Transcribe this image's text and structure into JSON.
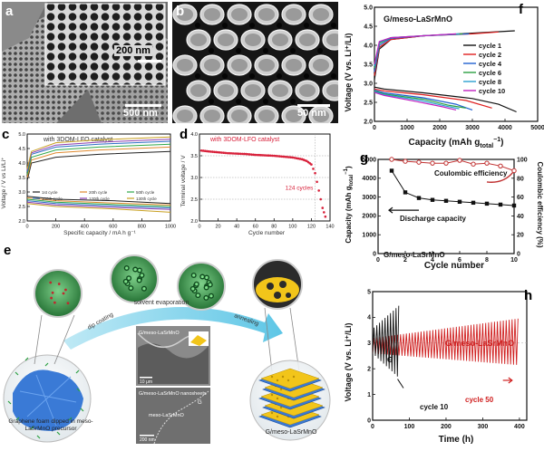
{
  "panels": {
    "a": {
      "label": "a",
      "scale_main": "500 nm",
      "scale_inset": "200 nm"
    },
    "b": {
      "label": "b",
      "scale": "50 nm"
    },
    "c": {
      "label": "c",
      "title": "with 3DOM-LFO catalyst",
      "ylabel": "Voltage / V vs Li/Li⁺",
      "xlabel": "Specific capacity / mA h g⁻¹",
      "yticks": [
        "2.0",
        "2.5",
        "3.0",
        "3.5",
        "4.0",
        "4.5",
        "5.0"
      ],
      "xticks": [
        "0",
        "200",
        "400",
        "600",
        "800",
        "1000"
      ],
      "legend": [
        "1st cycle",
        "20th cycle",
        "50th cycle",
        "100th cycle",
        "120th cycle",
        "130th cycle"
      ]
    },
    "d": {
      "label": "d",
      "title": "with 3DOM-LFO catalyst",
      "ylabel": "Terminal voltage / V",
      "xlabel": "Cycle number",
      "yticks": [
        "2.0",
        "2.5",
        "3.0",
        "3.5",
        "4.0"
      ],
      "xticks": [
        "0",
        "20",
        "40",
        "60",
        "80",
        "100",
        "120",
        "140"
      ],
      "annotation": "124 cycles"
    },
    "e": {
      "label": "e",
      "step1": "dip coating",
      "step2": "solvent evaporation",
      "step3": "annealing",
      "left_caption": "Graphene foam dipped in meso-LaSrMnO precursor",
      "right_caption": "G/meso-LaSrMnO",
      "sem_top_label": "G/meso-LaSrMnO",
      "sem_top_scale": "10 μm",
      "sem_bottom_label": "G/meso-LaSrMnO nanosheets",
      "sem_bottom_g": "G",
      "sem_bottom_m": "meso-LaSrMnO",
      "sem_bottom_scale": "200 nm"
    },
    "f": {
      "label": "f",
      "title": "G/meso-LaSrMnO",
      "ylabel": "Voltage (V vs. Li⁺/Li)",
      "xlabel": "Capacity (mAh g",
      "xlabel_sub": "total",
      "xlabel_sup": "−1",
      "xlabel_end": ")",
      "yticks": [
        "2.0",
        "2.5",
        "3.0",
        "3.5",
        "4.0",
        "4.5",
        "5.0"
      ],
      "xticks": [
        "0",
        "1000",
        "2000",
        "3000",
        "4000",
        "5000"
      ],
      "legend": [
        "cycle 1",
        "cycle 2",
        "cycle 4",
        "cycle 6",
        "cycle 8",
        "cycle 10"
      ]
    },
    "g": {
      "label": "g",
      "ylabel_left": "Capacity (mAh g",
      "ylabel_left_sub": "total",
      "ylabel_left_sup": "−1",
      "ylabel_left_end": ")",
      "ylabel_right": "Coulombic efficiency (%)",
      "xlabel": "Cycle number",
      "yticks_left": [
        "0",
        "1000",
        "2000",
        "3000",
        "4000",
        "5000"
      ],
      "yticks_right": [
        "0",
        "20",
        "40",
        "60",
        "80",
        "100"
      ],
      "xticks": [
        "0",
        "2",
        "4",
        "6",
        "8",
        "10"
      ],
      "annot_ce": "Coulombic efficiency",
      "annot_dc": "Discharge capacity",
      "annot_name": "G/meso-LaSrMnO"
    },
    "h": {
      "label": "h",
      "ylabel": "Voltage (V vs. Li⁺/Li)",
      "xlabel": "Time (h)",
      "yticks": [
        "0",
        "1",
        "2",
        "3",
        "4",
        "5"
      ],
      "xticks": [
        "0",
        "100",
        "200",
        "300",
        "400"
      ],
      "annot_g": "G",
      "annot_gm": "G/meso-LaSrMnO",
      "annot_c10": "cycle 10",
      "annot_c50": "cycle 50"
    }
  },
  "chart_data": [
    {
      "panel": "c",
      "type": "line",
      "title": "with 3DOM-LFO catalyst",
      "xlabel": "Specific capacity / mA h g⁻¹",
      "ylabel": "Voltage / V vs Li/Li⁺",
      "xlim": [
        0,
        1000
      ],
      "ylim": [
        2.0,
        5.0
      ],
      "series": [
        {
          "name": "1st cycle",
          "color": "#222222",
          "charge": [
            [
              0,
              3.4
            ],
            [
              30,
              4.0
            ],
            [
              200,
              4.2
            ],
            [
              500,
              4.3
            ],
            [
              1000,
              4.4
            ]
          ],
          "discharge": [
            [
              0,
              2.85
            ],
            [
              200,
              2.75
            ],
            [
              600,
              2.7
            ],
            [
              1000,
              2.6
            ]
          ]
        },
        {
          "name": "20th cycle",
          "color": "#e0892e",
          "charge": [
            [
              0,
              3.5
            ],
            [
              30,
              4.1
            ],
            [
              200,
              4.35
            ],
            [
              500,
              4.45
            ],
            [
              1000,
              4.55
            ]
          ],
          "discharge": [
            [
              0,
              2.8
            ],
            [
              200,
              2.7
            ],
            [
              600,
              2.62
            ],
            [
              1000,
              2.55
            ]
          ]
        },
        {
          "name": "50th cycle",
          "color": "#2fa84a",
          "charge": [
            [
              0,
              3.6
            ],
            [
              30,
              4.2
            ],
            [
              200,
              4.45
            ],
            [
              500,
              4.55
            ],
            [
              1000,
              4.65
            ]
          ],
          "discharge": [
            [
              0,
              2.75
            ],
            [
              200,
              2.65
            ],
            [
              600,
              2.57
            ],
            [
              1000,
              2.5
            ]
          ]
        },
        {
          "name": "100th cycle",
          "color": "#2d6fc4",
          "charge": [
            [
              0,
              3.7
            ],
            [
              30,
              4.3
            ],
            [
              200,
              4.55
            ],
            [
              500,
              4.65
            ],
            [
              1000,
              4.75
            ]
          ],
          "discharge": [
            [
              0,
              2.7
            ],
            [
              200,
              2.6
            ],
            [
              600,
              2.52
            ],
            [
              1000,
              2.45
            ]
          ]
        },
        {
          "name": "120th cycle",
          "color": "#8b3fb0",
          "charge": [
            [
              0,
              3.75
            ],
            [
              30,
              4.35
            ],
            [
              200,
              4.62
            ],
            [
              500,
              4.72
            ],
            [
              1000,
              4.82
            ]
          ],
          "discharge": [
            [
              0,
              2.65
            ],
            [
              200,
              2.55
            ],
            [
              600,
              2.47
            ],
            [
              1000,
              2.4
            ]
          ]
        },
        {
          "name": "130th cycle",
          "color": "#c8a020",
          "charge": [
            [
              0,
              3.8
            ],
            [
              30,
              4.4
            ],
            [
              200,
              4.7
            ],
            [
              500,
              4.8
            ],
            [
              1000,
              4.9
            ]
          ],
          "discharge": [
            [
              0,
              2.6
            ],
            [
              200,
              2.5
            ],
            [
              600,
              2.42
            ],
            [
              1000,
              2.3
            ]
          ]
        }
      ]
    },
    {
      "panel": "d",
      "type": "scatter",
      "title": "with 3DOM-LFO catalyst",
      "xlabel": "Cycle number",
      "ylabel": "Terminal voltage / V",
      "xlim": [
        0,
        140
      ],
      "ylim": [
        2.0,
        4.0
      ],
      "color": "#d8203a",
      "points": [
        [
          2,
          3.62
        ],
        [
          10,
          3.6
        ],
        [
          20,
          3.58
        ],
        [
          30,
          3.56
        ],
        [
          40,
          3.55
        ],
        [
          50,
          3.54
        ],
        [
          60,
          3.52
        ],
        [
          70,
          3.51
        ],
        [
          80,
          3.5
        ],
        [
          90,
          3.48
        ],
        [
          100,
          3.46
        ],
        [
          110,
          3.42
        ],
        [
          115,
          3.38
        ],
        [
          120,
          3.3
        ],
        [
          124,
          3.1
        ],
        [
          128,
          2.7
        ],
        [
          132,
          2.3
        ],
        [
          135,
          2.1
        ]
      ],
      "annotation": "124 cycles"
    },
    {
      "panel": "f",
      "type": "line",
      "title": "G/meso-LaSrMnO",
      "xlabel": "Capacity (mAh g_total⁻¹)",
      "ylabel": "Voltage (V vs. Li⁺/Li)",
      "xlim": [
        0,
        5000
      ],
      "ylim": [
        2.0,
        5.0
      ],
      "series": [
        {
          "name": "cycle 1",
          "color": "#111111",
          "charge": [
            [
              0,
              3.1
            ],
            [
              150,
              3.9
            ],
            [
              500,
              4.15
            ],
            [
              1500,
              4.25
            ],
            [
              3000,
              4.32
            ],
            [
              4300,
              4.38
            ]
          ],
          "discharge": [
            [
              0,
              2.9
            ],
            [
              300,
              2.85
            ],
            [
              1500,
              2.75
            ],
            [
              3000,
              2.6
            ],
            [
              3800,
              2.45
            ],
            [
              4350,
              2.25
            ]
          ]
        },
        {
          "name": "cycle 2",
          "color": "#e02020",
          "charge": [
            [
              0,
              3.2
            ],
            [
              150,
              3.95
            ],
            [
              500,
              4.15
            ],
            [
              1500,
              4.25
            ],
            [
              3000,
              4.3
            ],
            [
              3800,
              4.35
            ]
          ],
          "discharge": [
            [
              0,
              2.85
            ],
            [
              300,
              2.8
            ],
            [
              1500,
              2.7
            ],
            [
              2800,
              2.55
            ],
            [
              3600,
              2.35
            ]
          ]
        },
        {
          "name": "cycle 4",
          "color": "#2060d0",
          "charge": [
            [
              0,
              3.3
            ],
            [
              150,
              4.0
            ],
            [
              500,
              4.18
            ],
            [
              1500,
              4.25
            ],
            [
              2900,
              4.3
            ]
          ],
          "discharge": [
            [
              0,
              2.82
            ],
            [
              300,
              2.75
            ],
            [
              1500,
              2.62
            ],
            [
              2500,
              2.45
            ],
            [
              3000,
              2.3
            ]
          ]
        },
        {
          "name": "cycle 6",
          "color": "#2aa040",
          "charge": [
            [
              0,
              3.4
            ],
            [
              150,
              4.05
            ],
            [
              500,
              4.2
            ],
            [
              1500,
              4.25
            ],
            [
              2700,
              4.3
            ]
          ],
          "discharge": [
            [
              0,
              2.8
            ],
            [
              300,
              2.72
            ],
            [
              1500,
              2.58
            ],
            [
              2300,
              2.42
            ],
            [
              2800,
              2.35
            ]
          ]
        },
        {
          "name": "cycle 8",
          "color": "#2aa0d0",
          "charge": [
            [
              0,
              3.45
            ],
            [
              150,
              4.08
            ],
            [
              500,
              4.2
            ],
            [
              1500,
              4.25
            ],
            [
              2600,
              4.3
            ]
          ],
          "discharge": [
            [
              0,
              2.78
            ],
            [
              300,
              2.7
            ],
            [
              1400,
              2.55
            ],
            [
              2200,
              2.4
            ],
            [
              2600,
              2.33
            ]
          ]
        },
        {
          "name": "cycle 10",
          "color": "#c020c0",
          "charge": [
            [
              0,
              3.5
            ],
            [
              150,
              4.1
            ],
            [
              500,
              4.2
            ],
            [
              1500,
              4.25
            ],
            [
              2500,
              4.3
            ]
          ],
          "discharge": [
            [
              0,
              2.76
            ],
            [
              300,
              2.68
            ],
            [
              1300,
              2.52
            ],
            [
              2100,
              2.38
            ],
            [
              2500,
              2.3
            ]
          ]
        }
      ]
    },
    {
      "panel": "g",
      "type": "line",
      "xlabel": "Cycle number",
      "ylabel": "Capacity (mAh g_total⁻¹)",
      "ylabel_right": "Coulombic efficiency (%)",
      "xlim": [
        0,
        10
      ],
      "ylim": [
        0,
        5000
      ],
      "ylim_right": [
        0,
        100
      ],
      "series": [
        {
          "name": "Discharge capacity",
          "axis": "left",
          "color": "#111111",
          "x": [
            1,
            2,
            3,
            4,
            5,
            6,
            7,
            8,
            9,
            10
          ],
          "values": [
            4400,
            3250,
            2950,
            2850,
            2800,
            2750,
            2700,
            2650,
            2600,
            2550
          ]
        },
        {
          "name": "Coulombic efficiency",
          "axis": "right",
          "color": "#c03030",
          "x": [
            1,
            2,
            3,
            4,
            5,
            6,
            7,
            8,
            9,
            10
          ],
          "values": [
            100,
            98,
            97,
            96,
            96,
            99,
            95,
            96,
            93,
            88
          ]
        }
      ]
    },
    {
      "panel": "h",
      "type": "line",
      "xlabel": "Time (h)",
      "ylabel": "Voltage (V vs. Li⁺/Li)",
      "xlim": [
        0,
        420
      ],
      "ylim": [
        0,
        5
      ],
      "series": [
        {
          "name": "G",
          "color": "#111111",
          "t_start": 0,
          "t_end": 75,
          "cycles": 10,
          "upper_start": 3.6,
          "upper_end": 4.45,
          "lower_start": 2.6,
          "lower_end": 1.7
        },
        {
          "name": "G/meso-LaSrMnO",
          "color": "#d02020",
          "t_start": 0,
          "t_end": 400,
          "cycles": 50,
          "upper_start": 3.2,
          "upper_end": 3.95,
          "lower_start": 2.6,
          "lower_end": 2.15
        }
      ]
    }
  ]
}
